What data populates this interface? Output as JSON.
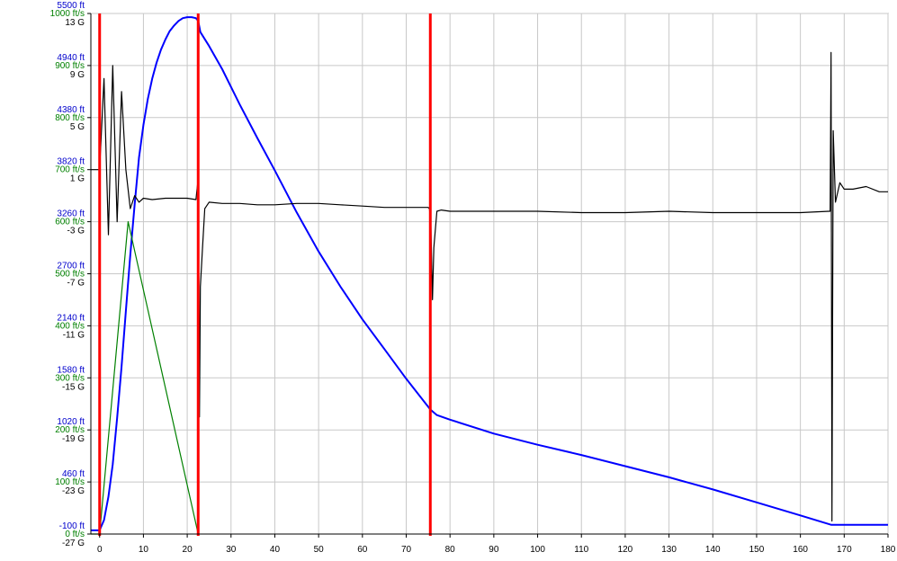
{
  "chart_data": {
    "type": "line",
    "x_ticks": [
      0,
      10,
      20,
      30,
      40,
      50,
      60,
      70,
      80,
      90,
      100,
      110,
      120,
      130,
      140,
      150,
      160,
      170,
      180
    ],
    "xlim": [
      -2,
      180
    ],
    "y_axes": [
      {
        "id": "velocity",
        "unit": "ft/s",
        "color": "#008000",
        "range": [
          0,
          1000
        ],
        "tick_labels": [
          "0 ft/s",
          "100 ft/s",
          "200 ft/s",
          "300 ft/s",
          "400 ft/s",
          "500 ft/s",
          "600 ft/s",
          "700 ft/s",
          "800 ft/s",
          "900 ft/s",
          "1000 ft/s"
        ]
      },
      {
        "id": "altitude",
        "unit": "ft",
        "color": "#0000cc",
        "range": [
          -100,
          5500
        ],
        "tick_labels": [
          "-100 ft",
          "460 ft",
          "1020 ft",
          "1580 ft",
          "2140 ft",
          "2700 ft",
          "3260 ft",
          "3820 ft",
          "4380 ft",
          "4940 ft",
          "5500 ft"
        ]
      },
      {
        "id": "acceleration",
        "unit": "G",
        "color": "#000000",
        "range": [
          -27,
          13
        ],
        "tick_labels": [
          "-27 G",
          "-23 G",
          "-19 G",
          "-15 G",
          "-11 G",
          "-7 G",
          "-3 G",
          "1 G",
          "5 G",
          "9 G",
          "13 G"
        ]
      }
    ],
    "markers": {
      "color": "#ff0000",
      "x": [
        0,
        22.5,
        75.5
      ]
    },
    "series": [
      {
        "axis": "altitude",
        "color": "#0000ff",
        "x": [
          -2,
          0,
          1,
          2,
          3,
          4,
          5,
          6,
          7,
          8,
          9,
          10,
          11,
          12,
          13,
          14,
          15,
          16,
          17,
          18,
          19,
          20,
          21,
          22,
          22.5,
          23,
          25,
          28,
          32,
          36,
          40,
          45,
          50,
          55,
          60,
          65,
          70,
          75.5,
          77,
          80,
          90,
          100,
          110,
          120,
          130,
          140,
          150,
          160,
          167,
          180
        ],
        "y": [
          -60,
          -60,
          50,
          300,
          650,
          1150,
          1700,
          2300,
          2900,
          3450,
          3950,
          4300,
          4580,
          4800,
          4970,
          5110,
          5220,
          5310,
          5370,
          5420,
          5450,
          5460,
          5460,
          5450,
          5420,
          5300,
          5150,
          4900,
          4520,
          4160,
          3810,
          3360,
          2940,
          2560,
          2210,
          1890,
          1570,
          1240,
          1180,
          1130,
          980,
          860,
          750,
          630,
          510,
          380,
          240,
          100,
          0,
          0
        ]
      },
      {
        "axis": "velocity",
        "color": "#008000",
        "x": [
          -2,
          0,
          6.5,
          22.5
        ],
        "y": [
          0,
          0,
          600,
          0
        ]
      },
      {
        "axis": "acceleration",
        "color": "#000000",
        "x": [
          -2,
          0,
          1,
          2,
          3,
          4,
          5,
          6,
          7,
          8,
          9,
          10,
          12,
          15,
          18,
          20,
          22,
          22.4,
          22.5,
          22.6,
          22.8,
          23,
          23.5,
          24,
          25,
          28,
          32,
          36,
          40,
          45,
          50,
          55,
          60,
          65,
          70,
          75,
          75.3,
          75.6,
          76,
          76.3,
          77,
          78,
          80,
          90,
          100,
          110,
          120,
          130,
          140,
          150,
          160,
          166.5,
          166.8,
          167,
          167.2,
          167.5,
          168,
          169,
          170,
          172,
          175,
          178,
          180
        ],
        "y": [
          1,
          1,
          8,
          -4,
          9,
          -3,
          7,
          1,
          -2,
          -1,
          -1.5,
          -1.2,
          -1.3,
          -1.2,
          -1.2,
          -1.2,
          -1.3,
          0,
          4,
          -6,
          -18,
          -8,
          -5,
          -2,
          -1.5,
          -1.6,
          -1.6,
          -1.7,
          -1.7,
          -1.6,
          -1.6,
          -1.7,
          -1.8,
          -1.9,
          -1.9,
          -1.9,
          -2,
          -3,
          -9,
          -5,
          -2.2,
          -2.1,
          -2.2,
          -2.2,
          -2.2,
          -2.3,
          -2.3,
          -2.2,
          -2.3,
          -2.3,
          -2.3,
          -2.2,
          -2.2,
          10,
          -26,
          4,
          -1.5,
          0,
          -0.5,
          -0.5,
          -0.3,
          -0.7,
          -0.7
        ]
      }
    ]
  }
}
